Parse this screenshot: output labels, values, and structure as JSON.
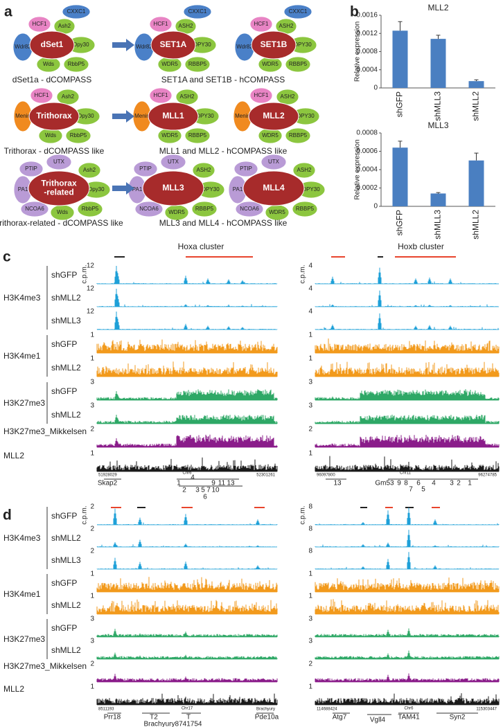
{
  "panel_a": {
    "letter": "a",
    "rows": [
      {
        "complexes": [
          {
            "core_lines": [
              "dSet1"
            ],
            "subunits": [
              "Wdr82",
              "HCF1",
              "Ash2",
              "CXXC1",
              "Dpy30",
              "Wds",
              "RbbP5"
            ]
          },
          {
            "core_lines": [
              "SET1A"
            ],
            "subunits": [
              "Wdr82",
              "HCF1",
              "ASH2",
              "CXXC1",
              "DPY30",
              "WDR5",
              "RBBP5"
            ]
          },
          {
            "core_lines": [
              "SET1B"
            ],
            "subunits": [
              "Wdr82",
              "HCF1",
              "ASH2",
              "CXXC1",
              "DPY30",
              "WDR5",
              "RBBP5"
            ]
          }
        ],
        "captions": [
          "dSet1a - dCOMPASS",
          "SET1A and SET1B - hCOMPASS"
        ]
      },
      {
        "complexes": [
          {
            "core_lines": [
              "Trithorax"
            ],
            "subunits": [
              "Menin",
              "HCF1",
              "Ash2",
              "Dpy30",
              "Wds",
              "RbbP5"
            ]
          },
          {
            "core_lines": [
              "MLL1"
            ],
            "subunits": [
              "Menin",
              "HCF1",
              "ASH2",
              "DPY30",
              "WDR5",
              "RBBP5"
            ]
          },
          {
            "core_lines": [
              "MLL2"
            ],
            "subunits": [
              "Menin",
              "HCF1",
              "ASH2",
              "DPY30",
              "WDR5",
              "RBBP5"
            ]
          }
        ],
        "captions": [
          "Trithorax - dCOMPASS like",
          "MLL1 and MLL2 - hCOMPASS like"
        ]
      },
      {
        "complexes": [
          {
            "core_lines": [
              "Trithorax",
              "-related"
            ],
            "subunits": [
              "PTIP",
              "UTX",
              "Ash2",
              "PA1",
              "Dpy30",
              "NCOA6",
              "Wds",
              "RbbP5"
            ]
          },
          {
            "core_lines": [
              "MLL3"
            ],
            "subunits": [
              "PTIP",
              "UTX",
              "ASH2",
              "PA1",
              "DPY30",
              "NCOA6",
              "WDR5",
              "RBBP5"
            ]
          },
          {
            "core_lines": [
              "MLL4"
            ],
            "subunits": [
              "PTIP",
              "UTX",
              "ASH2",
              "PA1",
              "DPY30",
              "NCOA6",
              "WDR5",
              "RBBP5"
            ]
          }
        ],
        "captions": [
          "Trithorax-related - dCOMPASS like",
          "MLL3 and MLL4 - hCOMPASS like"
        ]
      }
    ]
  },
  "panel_b": {
    "letter": "b"
  },
  "chart_data": [
    {
      "type": "bar",
      "title": "MLL2",
      "y_label": "Relative expression",
      "categories": [
        "shGFP",
        "shMLL3",
        "shMLL2"
      ],
      "values": [
        0.00126,
        0.00108,
        0.00015
      ],
      "errors": [
        0.0002,
        8e-05,
        3e-05
      ],
      "color": "#4a7fc1",
      "ylim": [
        0,
        0.0016
      ],
      "yticks": [
        0,
        0.0004,
        0.0008,
        0.0012,
        0.0016
      ]
    },
    {
      "type": "bar",
      "title": "MLL3",
      "y_label": "Relative expression",
      "categories": [
        "shGFP",
        "shMLL3",
        "shMLL2"
      ],
      "values": [
        0.00064,
        0.00014,
        0.0005
      ],
      "errors": [
        7e-05,
        1e-05,
        8e-05
      ],
      "color": "#4a7fc1",
      "ylim": [
        0,
        0.0008
      ],
      "yticks": [
        0,
        0.0002,
        0.0004,
        0.0006,
        0.0008
      ]
    }
  ],
  "panel_c": {
    "letter": "c",
    "y_unit": "c.p.m.",
    "regions": [
      "Hoxa cluster",
      "Hoxb cluster"
    ],
    "groups": [
      {
        "label": "H3K4me3",
        "color": "#1ea0d8",
        "rows": [
          "shGFP",
          "shMLL2",
          "shMLL3"
        ]
      },
      {
        "label": "H3K4me1",
        "color": "#f29a1c",
        "rows": [
          "shGFP",
          "shMLL2"
        ]
      },
      {
        "label": "H3K27me3",
        "color": "#2ea866",
        "rows": [
          "shGFP",
          "shMLL2"
        ]
      },
      {
        "label": "H3K27me3_Mikkelsen",
        "color": "#8a1c8a"
      },
      {
        "label": "MLL2",
        "color": "#1a1a1a"
      }
    ],
    "scales": [
      [
        12,
        12,
        12,
        1,
        1,
        3,
        3,
        2,
        1
      ],
      [
        4,
        4,
        4,
        1,
        1,
        3,
        3,
        2,
        1
      ]
    ],
    "genes": [
      [
        "51928029",
        "Skap2",
        "Chr6",
        "52301261",
        "4",
        "1",
        "2",
        "3",
        "5",
        "7",
        "10",
        "9",
        "11",
        "13",
        "6"
      ],
      [
        "96097800",
        "13",
        "Chr11",
        "96274785",
        "Gm53",
        "9",
        "8",
        "7",
        "6",
        "5",
        "4",
        "3",
        "2",
        "1"
      ]
    ]
  },
  "panel_d": {
    "letter": "d",
    "y_unit": "c.p.m.",
    "groups": [
      {
        "label": "H3K4me3",
        "color": "#1ea0d8",
        "rows": [
          "shGFP",
          "shMLL2",
          "shMLL3"
        ]
      },
      {
        "label": "H3K4me1",
        "color": "#f29a1c",
        "rows": [
          "shGFP",
          "shMLL2"
        ]
      },
      {
        "label": "H3K27me3",
        "color": "#2ea866",
        "rows": [
          "shGFP",
          "shMLL2"
        ]
      },
      {
        "label": "H3K27me3_Mikkelsen",
        "color": "#8a1c8a"
      },
      {
        "label": "MLL2",
        "color": "#1a1a1a"
      }
    ],
    "scales": [
      [
        2,
        2,
        2,
        1,
        1,
        3,
        3,
        2,
        1
      ],
      [
        8,
        8,
        8,
        1,
        1,
        3,
        3,
        2,
        1
      ]
    ],
    "genes": [
      [
        "8511193",
        "Prr18",
        "Chr17",
        "Brachyury",
        "T2",
        "Brachyury",
        "T",
        "8741754",
        "Pde10a"
      ],
      [
        "114688424",
        "Atg7",
        "Vgll4",
        "Chr6",
        "TAM41",
        "115303447",
        "Syn2"
      ]
    ]
  }
}
